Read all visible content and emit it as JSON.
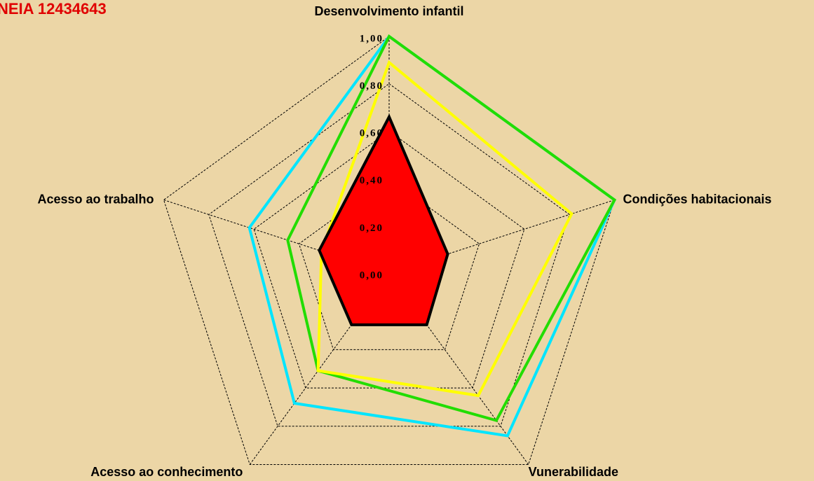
{
  "chart_data": {
    "type": "radar",
    "title": "NEIA 12434643",
    "categories": [
      "Desenvolvimento infantil",
      "Condições habitacionais",
      "Vunerabilidade",
      "Acesso ao conhecimento",
      "Acesso ao trabalho"
    ],
    "rlim": [
      0,
      1
    ],
    "rticks": [
      {
        "value": 0,
        "label": "0,00"
      },
      {
        "value": 0.2,
        "label": "0,20"
      },
      {
        "value": 0.4,
        "label": "0,40"
      },
      {
        "value": 0.6,
        "label": "0,60"
      },
      {
        "value": 0.8,
        "label": "0,80"
      },
      {
        "value": 1,
        "label": "1,00"
      }
    ],
    "grid": true,
    "series": [
      {
        "color": "#00e5ff",
        "values": [
          1.0,
          1.0,
          0.85,
          0.68,
          0.62
        ]
      },
      {
        "color": "#22dd00",
        "values": [
          1.0,
          1.0,
          0.77,
          0.51,
          0.45
        ]
      },
      {
        "color": "#ffff00",
        "values": [
          0.89,
          0.81,
          0.64,
          0.51,
          0.3
        ]
      },
      {
        "color": "#ff0000",
        "fill": true,
        "values": [
          0.66,
          0.26,
          0.27,
          0.27,
          0.31
        ]
      }
    ]
  }
}
